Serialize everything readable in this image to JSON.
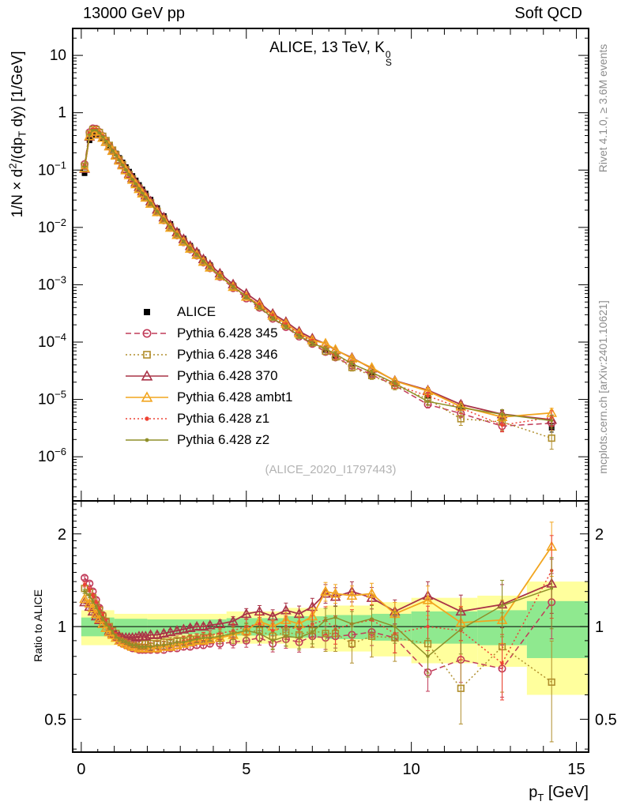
{
  "header": {
    "left": "13000 GeV pp",
    "right": "Soft QCD"
  },
  "panel_title_parts": [
    {
      "t": "ALICE, 13 TeV, K"
    },
    {
      "stack": {
        "sup": "0",
        "sub": "S"
      }
    }
  ],
  "right_margin": {
    "top": "Rivet 4.1.0, ≥ 3.6M events",
    "bottom": "mcplots.cern.ch [arXiv:2401.10621]"
  },
  "watermark": "(ALICE_2020_I1797443)",
  "axes": {
    "y_main_label_parts": [
      {
        "t": "1/N × d"
      },
      {
        "t": "2",
        "sup": true
      },
      {
        "t": "/(dp"
      },
      {
        "t": "T",
        "sub": true
      },
      {
        "t": " dy) [1/GeV]"
      }
    ],
    "ratio_label": "Ratio to ALICE",
    "x_label_parts": [
      {
        "t": "p"
      },
      {
        "t": "T",
        "sub": true
      },
      {
        "t": " [GeV]"
      }
    ],
    "x_ticks": [
      {
        "v": 0,
        "label": "0"
      },
      {
        "v": 5,
        "label": "5"
      },
      {
        "v": 10,
        "label": "10"
      },
      {
        "v": 15,
        "label": "15"
      }
    ],
    "y_main_ticks": [
      {
        "v": 10,
        "t": "10"
      },
      {
        "v": 1,
        "t": "1"
      },
      {
        "v": 0.1,
        "t": "10",
        "e": "−1"
      },
      {
        "v": 0.01,
        "t": "10",
        "e": "−2"
      },
      {
        "v": 0.001,
        "t": "10",
        "e": "−3"
      },
      {
        "v": 0.0001,
        "t": "10",
        "e": "−4"
      },
      {
        "v": 1e-05,
        "t": "10",
        "e": "−5"
      },
      {
        "v": 1e-06,
        "t": "10",
        "e": "−6"
      }
    ],
    "ratio_ticks": [
      {
        "v": 2,
        "label": "2"
      },
      {
        "v": 1,
        "label": "1"
      },
      {
        "v": 0.5,
        "label": "0.5"
      }
    ]
  },
  "legend": [
    {
      "key": "alice",
      "label": "ALICE",
      "color": "#000000",
      "line": "none",
      "marker": "square-fill",
      "size": 7
    },
    {
      "key": "345",
      "label": "Pythia 6.428 345",
      "color": "#c13b59",
      "line": "7,4",
      "marker": "circle-open",
      "size": 4.2
    },
    {
      "key": "346",
      "label": "Pythia 6.428 346",
      "color": "#b08e2c",
      "line": "2,3",
      "marker": "square-open",
      "size": 7.6
    },
    {
      "key": "370",
      "label": "Pythia 6.428 370",
      "color": "#a93347",
      "line": "solid",
      "marker": "triangle-open",
      "size": 5.5
    },
    {
      "key": "ambt1",
      "label": "Pythia 6.428 ambt1",
      "color": "#f2a51f",
      "line": "solid",
      "marker": "triangle-open",
      "size": 5.5
    },
    {
      "key": "z1",
      "label": "Pythia 6.428 z1",
      "color": "#ee4233",
      "line": "2,3",
      "marker": "dot",
      "size": 2.2
    },
    {
      "key": "z2",
      "label": "Pythia 6.428 z2",
      "color": "#8f8f28",
      "line": "solid",
      "marker": "dot",
      "size": 1.9
    }
  ],
  "band_colors": {
    "yellow": "#ffff9d",
    "green": "#8fe98f"
  },
  "chart_data": {
    "type": "line",
    "title": "ALICE, 13 TeV, K0S",
    "xlabel": "pT [GeV]",
    "ylabel": "1/N x d2/(dpT dy) [1/GeV]",
    "ratio_ylabel": "Ratio to ALICE",
    "x_range": [
      -0.26,
      15.37
    ],
    "y_range_main": [
      1.7e-07,
      29.5
    ],
    "y_range_ratio": [
      0.391,
      2.56
    ],
    "legend_position": "middle-left",
    "grid": false,
    "x": [
      0.1,
      0.25,
      0.35,
      0.45,
      0.55,
      0.65,
      0.75,
      0.85,
      0.95,
      1.05,
      1.15,
      1.25,
      1.35,
      1.45,
      1.55,
      1.65,
      1.75,
      1.85,
      1.95,
      2.1,
      2.3,
      2.5,
      2.7,
      2.9,
      3.1,
      3.3,
      3.5,
      3.7,
      3.9,
      4.2,
      4.6,
      5.0,
      5.4,
      5.8,
      6.2,
      6.6,
      7.0,
      7.4,
      7.7,
      8.2,
      8.8,
      9.5,
      10.5,
      11.5,
      12.75,
      14.25
    ],
    "reference": {
      "name": "ALICE",
      "values": [
        0.088,
        0.33,
        0.41,
        0.43,
        0.4,
        0.36,
        0.315,
        0.27,
        0.23,
        0.195,
        0.163,
        0.136,
        0.113,
        0.094,
        0.079,
        0.066,
        0.055,
        0.046,
        0.039,
        0.0305,
        0.0218,
        0.0158,
        0.0115,
        0.0085,
        0.0064,
        0.0048,
        0.0037,
        0.0028,
        0.0022,
        0.00155,
        0.00098,
        0.00064,
        0.00043,
        0.00029,
        0.0002,
        0.00014,
        0.0001,
        7.3e-05,
        5.8e-05,
        4.1e-05,
        2.8e-05,
        1.9e-05,
        1.15e-05,
        7.3e-06,
        4.7e-06,
        3.2e-06
      ]
    },
    "err_frac": [
      0.012,
      0.012,
      0.012,
      0.012,
      0.012,
      0.012,
      0.012,
      0.012,
      0.012,
      0.012,
      0.012,
      0.012,
      0.012,
      0.012,
      0.012,
      0.012,
      0.012,
      0.012,
      0.012,
      0.02,
      0.02,
      0.02,
      0.02,
      0.02,
      0.02,
      0.02,
      0.02,
      0.02,
      0.02,
      0.03,
      0.035,
      0.04,
      0.045,
      0.05,
      0.055,
      0.06,
      0.065,
      0.07,
      0.07,
      0.075,
      0.08,
      0.09,
      0.11,
      0.13,
      0.16,
      0.2
    ],
    "series": [
      {
        "key": "345",
        "name": "Pythia 6.428 345",
        "err_scale": 1.2,
        "ratio": [
          1.44,
          1.38,
          1.3,
          1.22,
          1.15,
          1.09,
          1.04,
          0.99,
          0.95,
          0.92,
          0.9,
          0.88,
          0.87,
          0.86,
          0.85,
          0.85,
          0.84,
          0.84,
          0.84,
          0.84,
          0.84,
          0.84,
          0.85,
          0.85,
          0.86,
          0.86,
          0.87,
          0.87,
          0.88,
          0.88,
          0.89,
          0.9,
          0.92,
          0.88,
          0.91,
          0.89,
          0.93,
          0.92,
          0.93,
          0.94,
          0.96,
          0.92,
          0.71,
          0.78,
          0.73,
          1.2
        ]
      },
      {
        "key": "346",
        "name": "Pythia 6.428 346",
        "err_scale": 1.8,
        "ratio": [
          1.33,
          1.29,
          1.24,
          1.18,
          1.13,
          1.08,
          1.04,
          1.0,
          0.97,
          0.95,
          0.93,
          0.91,
          0.9,
          0.89,
          0.89,
          0.88,
          0.88,
          0.88,
          0.88,
          0.88,
          0.88,
          0.89,
          0.89,
          0.9,
          0.9,
          0.91,
          0.91,
          0.92,
          0.92,
          0.93,
          0.94,
          0.96,
          0.97,
          0.93,
          0.96,
          0.94,
          0.97,
          0.95,
          0.95,
          0.88,
          0.93,
          0.92,
          0.88,
          0.63,
          0.86,
          0.66
        ]
      },
      {
        "key": "370",
        "name": "Pythia 6.428 370",
        "err_scale": 1.0,
        "ratio": [
          1.2,
          1.16,
          1.12,
          1.08,
          1.05,
          1.02,
          0.99,
          0.97,
          0.95,
          0.94,
          0.93,
          0.92,
          0.92,
          0.92,
          0.92,
          0.92,
          0.93,
          0.93,
          0.93,
          0.94,
          0.94,
          0.95,
          0.96,
          0.97,
          0.98,
          0.99,
          1.0,
          1.0,
          1.01,
          1.02,
          1.04,
          1.1,
          1.12,
          1.08,
          1.13,
          1.1,
          1.16,
          1.28,
          1.25,
          1.3,
          1.24,
          1.12,
          1.26,
          1.12,
          1.18,
          1.38
        ]
      },
      {
        "key": "ambt1",
        "name": "Pythia 6.428 ambt1",
        "err_scale": 1.0,
        "ratio": [
          1.23,
          1.19,
          1.15,
          1.1,
          1.06,
          1.02,
          0.99,
          0.96,
          0.94,
          0.92,
          0.9,
          0.89,
          0.88,
          0.87,
          0.86,
          0.86,
          0.85,
          0.85,
          0.85,
          0.85,
          0.85,
          0.86,
          0.86,
          0.87,
          0.88,
          0.89,
          0.9,
          0.9,
          0.91,
          0.92,
          0.94,
          0.97,
          1.04,
          1.0,
          1.05,
          1.02,
          1.08,
          1.3,
          1.28,
          1.26,
          1.28,
          1.1,
          1.22,
          1.03,
          1.05,
          1.82
        ]
      },
      {
        "key": "z1",
        "name": "Pythia 6.428 z1",
        "err_scale": 1.5,
        "ratio": [
          1.37,
          1.32,
          1.26,
          1.2,
          1.14,
          1.09,
          1.04,
          1.0,
          0.97,
          0.94,
          0.92,
          0.9,
          0.89,
          0.88,
          0.87,
          0.87,
          0.86,
          0.86,
          0.86,
          0.86,
          0.87,
          0.87,
          0.88,
          0.89,
          0.9,
          0.91,
          0.92,
          0.93,
          0.94,
          0.95,
          0.97,
          1.0,
          1.02,
          0.97,
          1.0,
          0.98,
          1.02,
          1.05,
          0.98,
          1.02,
          1.05,
          0.95,
          1.0,
          0.97,
          0.76,
          1.52
        ]
      },
      {
        "key": "z2",
        "name": "Pythia 6.428 z2",
        "err_scale": 1.3,
        "ratio": [
          1.3,
          1.26,
          1.21,
          1.16,
          1.11,
          1.06,
          1.02,
          0.99,
          0.96,
          0.93,
          0.91,
          0.9,
          0.89,
          0.88,
          0.87,
          0.87,
          0.86,
          0.86,
          0.86,
          0.86,
          0.87,
          0.87,
          0.88,
          0.89,
          0.89,
          0.9,
          0.91,
          0.92,
          0.92,
          0.93,
          0.95,
          0.97,
          0.95,
          0.9,
          0.93,
          0.92,
          0.96,
          1.05,
          1.07,
          1.02,
          1.06,
          1.0,
          0.8,
          0.98,
          1.17,
          1.33
        ]
      }
    ],
    "bands": [
      {
        "x0": 0.0,
        "x1": 1.0,
        "yellow": 0.13,
        "green": 0.07
      },
      {
        "x0": 1.0,
        "x1": 2.0,
        "yellow": 0.1,
        "green": 0.06
      },
      {
        "x0": 2.0,
        "x1": 4.4,
        "yellow": 0.1,
        "green": 0.055
      },
      {
        "x0": 4.4,
        "x1": 6.2,
        "yellow": 0.12,
        "green": 0.065
      },
      {
        "x0": 6.2,
        "x1": 7.4,
        "yellow": 0.15,
        "green": 0.08
      },
      {
        "x0": 7.4,
        "x1": 8.8,
        "yellow": 0.17,
        "green": 0.09
      },
      {
        "x0": 8.8,
        "x1": 10.0,
        "yellow": 0.2,
        "green": 0.1
      },
      {
        "x0": 10.0,
        "x1": 12.0,
        "yellow": 0.24,
        "green": 0.12
      },
      {
        "x0": 12.0,
        "x1": 13.5,
        "yellow": 0.26,
        "green": 0.13
      },
      {
        "x0": 13.5,
        "x1": 15.37,
        "yellow": 0.4,
        "green": 0.21
      }
    ]
  }
}
